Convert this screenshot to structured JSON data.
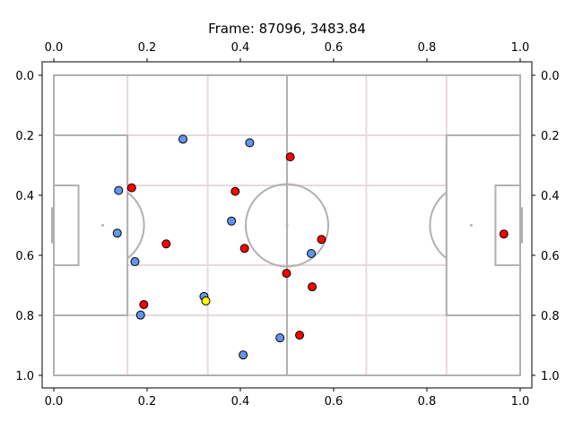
{
  "chart_data": {
    "type": "scatter",
    "title": "Frame: 87096, 3483.84",
    "xlim": [
      0,
      1
    ],
    "ylim": [
      0,
      1
    ],
    "y_inverted": true,
    "grid": false,
    "tick_labels": [
      "0.0",
      "0.2",
      "0.4",
      "0.6",
      "0.8",
      "1.0"
    ],
    "tick_values": [
      0,
      0.2,
      0.4,
      0.6,
      0.8,
      1.0
    ],
    "colors": {
      "team_a": "#6495ed",
      "team_b": "#ff0000",
      "ball": "#ffff00",
      "pitch_lines": "#b0b0b0",
      "zone_lines": "#e8d8dc"
    },
    "series": [
      {
        "color_key": "team_a",
        "points": [
          {
            "x": 0.277,
            "y": 0.213
          },
          {
            "x": 0.42,
            "y": 0.225
          },
          {
            "x": 0.139,
            "y": 0.384
          },
          {
            "x": 0.381,
            "y": 0.486
          },
          {
            "x": 0.136,
            "y": 0.526
          },
          {
            "x": 0.552,
            "y": 0.594
          },
          {
            "x": 0.174,
            "y": 0.621
          },
          {
            "x": 0.322,
            "y": 0.737
          },
          {
            "x": 0.186,
            "y": 0.799
          },
          {
            "x": 0.485,
            "y": 0.875
          },
          {
            "x": 0.406,
            "y": 0.932
          }
        ]
      },
      {
        "color_key": "team_b",
        "points": [
          {
            "x": 0.507,
            "y": 0.272
          },
          {
            "x": 0.167,
            "y": 0.375
          },
          {
            "x": 0.389,
            "y": 0.387
          },
          {
            "x": 0.574,
            "y": 0.547
          },
          {
            "x": 0.965,
            "y": 0.529
          },
          {
            "x": 0.241,
            "y": 0.562
          },
          {
            "x": 0.409,
            "y": 0.577
          },
          {
            "x": 0.499,
            "y": 0.66
          },
          {
            "x": 0.554,
            "y": 0.705
          },
          {
            "x": 0.193,
            "y": 0.764
          },
          {
            "x": 0.527,
            "y": 0.866
          }
        ]
      },
      {
        "color_key": "ball",
        "points": [
          {
            "x": 0.326,
            "y": 0.752
          }
        ]
      }
    ]
  }
}
